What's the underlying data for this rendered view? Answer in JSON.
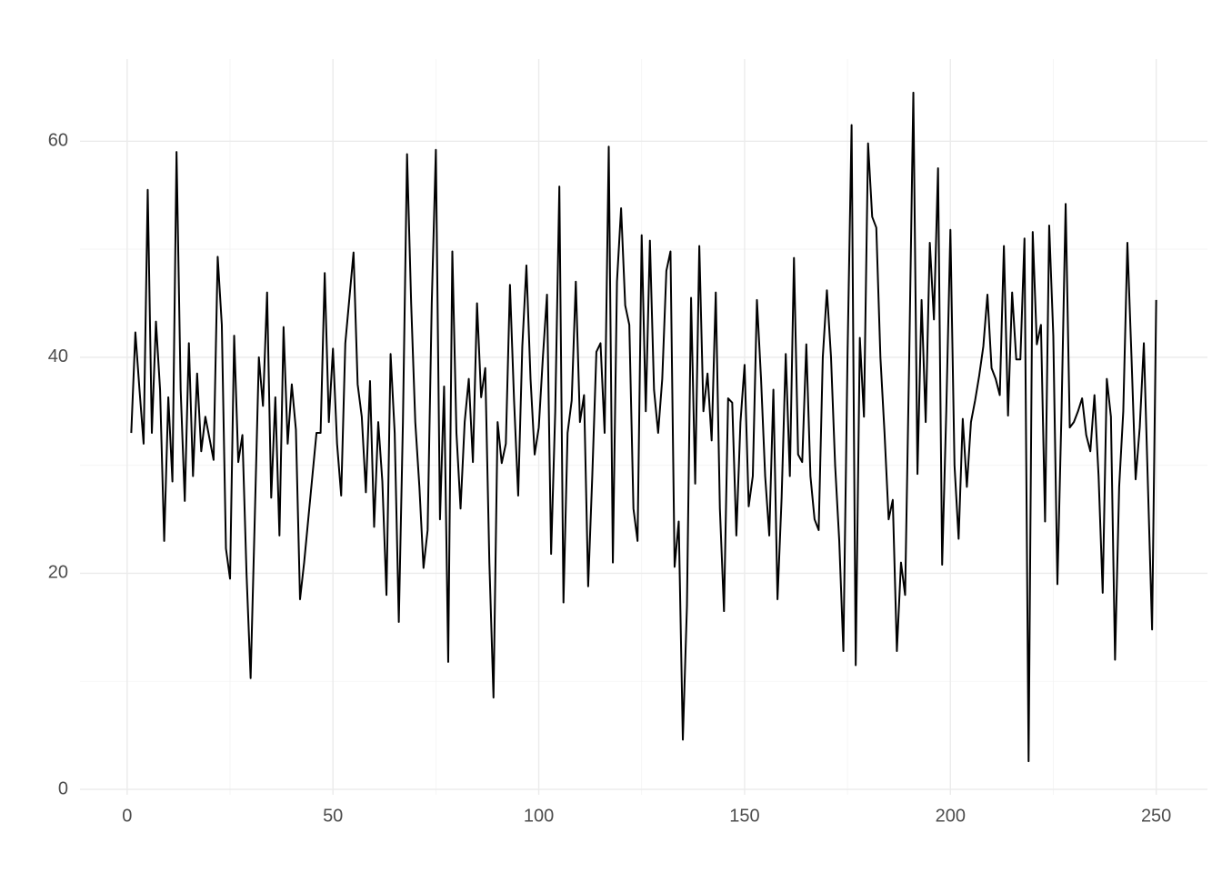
{
  "chart_data": {
    "type": "line",
    "color": "#000000",
    "x": [
      1,
      2,
      3,
      4,
      5,
      6,
      7,
      8,
      9,
      10,
      11,
      12,
      13,
      14,
      15,
      16,
      17,
      18,
      19,
      20,
      21,
      22,
      23,
      24,
      25,
      26,
      27,
      28,
      29,
      30,
      31,
      32,
      33,
      34,
      35,
      36,
      37,
      38,
      39,
      40,
      41,
      42,
      43,
      44,
      45,
      46,
      47,
      48,
      49,
      50,
      51,
      52,
      53,
      54,
      55,
      56,
      57,
      58,
      59,
      60,
      61,
      62,
      63,
      64,
      65,
      66,
      67,
      68,
      69,
      70,
      71,
      72,
      73,
      74,
      75,
      76,
      77,
      78,
      79,
      80,
      81,
      82,
      83,
      84,
      85,
      86,
      87,
      88,
      89,
      90,
      91,
      92,
      93,
      94,
      95,
      96,
      97,
      98,
      99,
      100,
      101,
      102,
      103,
      104,
      105,
      106,
      107,
      108,
      109,
      110,
      111,
      112,
      113,
      114,
      115,
      116,
      117,
      118,
      119,
      120,
      121,
      122,
      123,
      124,
      125,
      126,
      127,
      128,
      129,
      130,
      131,
      132,
      133,
      134,
      135,
      136,
      137,
      138,
      139,
      140,
      141,
      142,
      143,
      144,
      145,
      146,
      147,
      148,
      149,
      150,
      151,
      152,
      153,
      154,
      155,
      156,
      157,
      158,
      159,
      160,
      161,
      162,
      163,
      164,
      165,
      166,
      167,
      168,
      169,
      170,
      171,
      172,
      173,
      174,
      175,
      176,
      177,
      178,
      179,
      180,
      181,
      182,
      183,
      184,
      185,
      186,
      187,
      188,
      189,
      190,
      191,
      192,
      193,
      194,
      195,
      196,
      197,
      198,
      199,
      200,
      201,
      202,
      203,
      204,
      205,
      206,
      207,
      208,
      209,
      210,
      211,
      212,
      213,
      214,
      215,
      216,
      217,
      218,
      219,
      220,
      221,
      222,
      223,
      224,
      225,
      226,
      227,
      228,
      229,
      230,
      231,
      232,
      233,
      234,
      235,
      236,
      237,
      238,
      239,
      240,
      241,
      242,
      243,
      244,
      245,
      246,
      247,
      248,
      249,
      250
    ],
    "values": [
      33,
      42.3,
      37,
      32,
      55.5,
      33,
      43.3,
      37,
      23,
      36.3,
      28.5,
      59,
      37,
      26.7,
      41.3,
      29,
      38.5,
      31.3,
      34.5,
      32.5,
      30.5,
      49.3,
      43,
      22.3,
      19.5,
      42,
      30.3,
      32.8,
      20,
      10.3,
      25,
      40,
      35.5,
      46,
      27,
      36.3,
      23.5,
      42.8,
      32,
      37.5,
      33.3,
      17.6,
      21,
      25,
      29,
      33,
      33,
      47.8,
      34,
      40.8,
      32,
      27.2,
      41.3,
      45.5,
      49.7,
      37.5,
      34.5,
      27.5,
      37.8,
      24.3,
      34,
      28.5,
      18,
      40.3,
      33,
      15.5,
      34,
      58.8,
      45,
      34,
      28,
      20.5,
      24,
      45,
      59.2,
      25,
      37.3,
      11.8,
      49.8,
      33,
      26,
      34,
      38,
      30.3,
      45,
      36.3,
      39,
      21,
      8.5,
      34,
      30.2,
      32,
      46.7,
      36,
      27.2,
      41,
      48.5,
      38,
      31,
      33.5,
      40,
      45.8,
      21.8,
      35,
      55.8,
      17.3,
      33,
      36,
      47,
      34,
      36.5,
      18.8,
      29,
      40.5,
      41.3,
      33,
      59.5,
      21,
      47,
      53.8,
      44.8,
      43,
      26,
      23,
      51.3,
      35,
      50.8,
      37,
      33,
      38,
      48,
      49.8,
      20.6,
      24.8,
      4.6,
      17,
      45.5,
      28.3,
      50.3,
      35,
      38.5,
      32.3,
      46,
      26,
      16.5,
      36.2,
      35.8,
      23.5,
      34,
      39.3,
      26.2,
      29,
      45.3,
      38,
      29,
      23.5,
      37,
      17.6,
      27,
      40.3,
      29,
      49.2,
      31,
      30.3,
      41.2,
      29,
      25,
      24,
      40,
      46.2,
      40,
      30,
      23,
      12.8,
      40,
      61.5,
      11.5,
      41.8,
      34.5,
      59.8,
      53,
      52,
      40,
      33,
      25,
      26.8,
      12.8,
      21,
      18,
      40,
      64.5,
      29.2,
      45.3,
      34,
      50.6,
      43.5,
      57.5,
      20.8,
      35,
      51.8,
      30,
      23.2,
      34.3,
      28,
      34,
      36,
      38.3,
      41,
      45.8,
      39,
      38,
      36.5,
      50.3,
      34.6,
      46,
      39.8,
      39.8,
      51,
      2.6,
      51.6,
      41.2,
      43,
      24.8,
      52.2,
      42,
      19,
      35,
      54.2,
      33.5,
      34,
      35,
      36.2,
      32.8,
      31.3,
      36.5,
      29,
      18.2,
      38,
      34.5,
      12,
      28,
      35,
      50.6,
      40,
      28.7,
      33.5,
      41.3,
      28,
      14.8,
      45.3
    ],
    "xlim": [
      -11.45,
      262.45
    ],
    "ylim": [
      -0.5,
      67.6
    ],
    "xticks": [
      0,
      50,
      100,
      150,
      200,
      250
    ],
    "yticks": [
      0,
      20,
      40,
      60
    ],
    "xminor": [
      25,
      75,
      125,
      175,
      225
    ],
    "yminor": [
      10,
      30,
      50
    ],
    "grid": true
  }
}
